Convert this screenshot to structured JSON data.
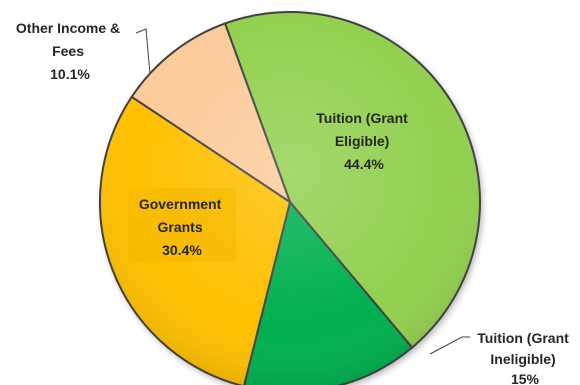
{
  "chart_data": {
    "type": "pie",
    "title": "",
    "slices": [
      {
        "label_lines": [
          "Tuition (Grant",
          "Eligible)"
        ],
        "value_text": "44.4%",
        "value": 44.4,
        "color": "#92D050"
      },
      {
        "label_lines": [
          "Tuition (Grant",
          "Ineligible)"
        ],
        "value_text": "15%",
        "value": 15,
        "color": "#00B050"
      },
      {
        "label_lines": [
          "Government",
          "Grants"
        ],
        "value_text": "30.4%",
        "value": 30.4,
        "color": "#FFC000"
      },
      {
        "label_lines": [
          "Other Income &",
          "Fees"
        ],
        "value_text": "10.1%",
        "value": 10.1,
        "color": "#FBCB9A"
      }
    ],
    "legend": "none",
    "data_labels": true
  }
}
